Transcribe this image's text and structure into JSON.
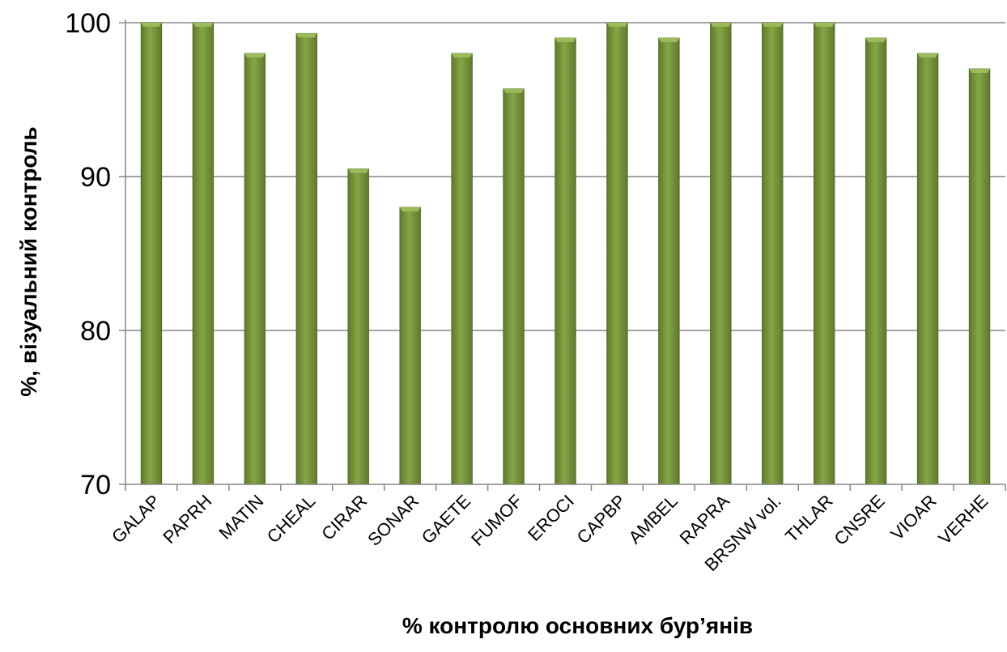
{
  "chart_data": {
    "type": "bar",
    "title": "",
    "xlabel": "% контролю основних бур’янів",
    "ylabel": "%, візуальний контроль",
    "ylim": [
      70,
      100
    ],
    "yticks": [
      70,
      80,
      90,
      100
    ],
    "grid": true,
    "categories": [
      "GALAP",
      "PAPRH",
      "MATIN",
      "CHEAL",
      "CIRAR",
      "SONAR",
      "GAETE",
      "FUMOF",
      "EROCI",
      "CAPBP",
      "AMBEL",
      "RAPRA",
      "BRSNW vol.",
      "THLAR",
      "CNSRE",
      "VIOAR",
      "VERHE"
    ],
    "values": [
      100,
      100,
      98,
      99.3,
      90.5,
      88,
      98,
      95.7,
      99,
      100,
      99,
      100,
      100,
      100,
      99,
      98,
      97
    ],
    "colors": {
      "bar": "#77933C",
      "bar_light": "#9BBB59",
      "bar_dark": "#4F6228",
      "grid": "#868686",
      "axis": "#868686"
    }
  }
}
